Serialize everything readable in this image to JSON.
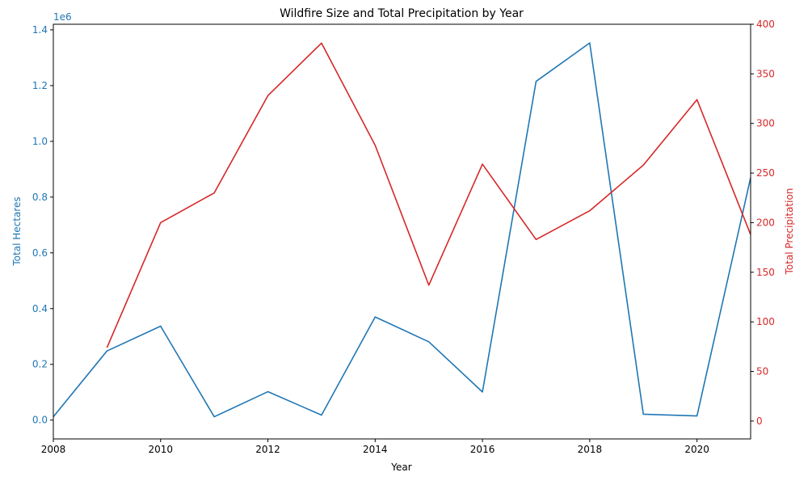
{
  "chart_data": {
    "type": "line",
    "title": "Wildfire Size and Total Precipitation by Year",
    "xlabel": "Year",
    "ylabel_left": "Total Hectares",
    "ylabel_right": "Total Precipitation",
    "left_axis_offset_label": "1e6",
    "xlim": [
      2008,
      2021
    ],
    "ylim_left": [
      -0.0675,
      1.42
    ],
    "ylim_right": [
      -18,
      400
    ],
    "x_ticks": [
      "2008",
      "2010",
      "2012",
      "2014",
      "2016",
      "2018",
      "2020"
    ],
    "x_tick_values": [
      2008,
      2010,
      2012,
      2014,
      2016,
      2018,
      2020
    ],
    "y_left_ticks": [
      "0.0",
      "0.2",
      "0.4",
      "0.6",
      "0.8",
      "1.0",
      "1.2",
      "1.4"
    ],
    "y_left_tick_values": [
      0,
      0.2,
      0.4,
      0.6,
      0.8,
      1.0,
      1.2,
      1.4
    ],
    "y_right_ticks": [
      "0",
      "50",
      "100",
      "150",
      "200",
      "250",
      "300",
      "350",
      "400"
    ],
    "y_right_tick_values": [
      0,
      50,
      100,
      150,
      200,
      250,
      300,
      350,
      400
    ],
    "grid": false,
    "colors": {
      "hectares": "#1f77b4",
      "precipitation": "#d62728",
      "axis": "#000000"
    },
    "series": [
      {
        "axis": "left",
        "x": [
          2008,
          2009,
          2010,
          2011,
          2012,
          2013,
          2014,
          2015,
          2016,
          2017,
          2018,
          2019,
          2020,
          2021
        ],
        "values": [
          0.012,
          0.248,
          0.337,
          0.012,
          0.102,
          0.018,
          0.37,
          0.281,
          0.101,
          1.215,
          1.353,
          0.021,
          0.015,
          0.87
        ]
      },
      {
        "axis": "right",
        "x": [
          2009,
          2010,
          2011,
          2012,
          2013,
          2014,
          2015,
          2016,
          2017,
          2018,
          2019,
          2020,
          2021
        ],
        "values": [
          74,
          200,
          230,
          328,
          381,
          278,
          137,
          259,
          183,
          212,
          258,
          324,
          188
        ]
      }
    ]
  }
}
